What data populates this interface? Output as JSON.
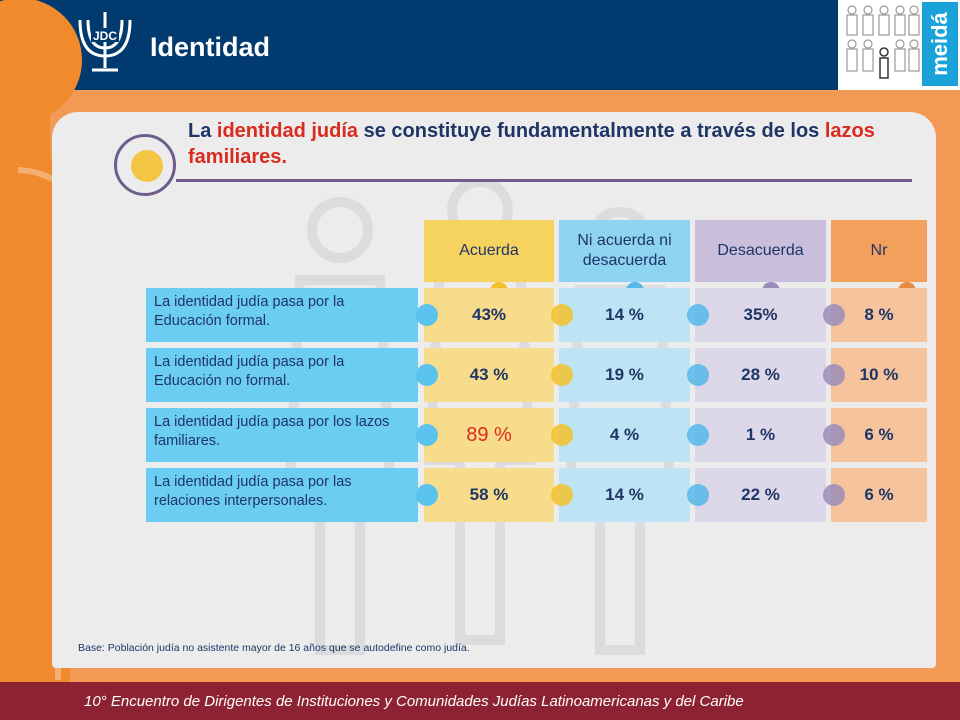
{
  "header": {
    "title": "Identidad",
    "logo_text": "JDC",
    "brand_text": "meidá"
  },
  "headline": {
    "part1": "La ",
    "highlight1": "identidad judía",
    "part2": " se constituye fundamentalmente a través de los ",
    "highlight2": "lazos familiares."
  },
  "columns": [
    {
      "label": "Acuerda",
      "color": "#f6d35f",
      "cell_color": "#f7dd8b",
      "knob_color": "#f2c12a"
    },
    {
      "label": "Ni acuerda ni desacuerda",
      "color": "#8fd3f3",
      "cell_color": "#bde4f5",
      "knob_color": "#56b8e8"
    },
    {
      "label": "Desacuerda",
      "color": "#c9bfdc",
      "cell_color": "#ddd7ea",
      "knob_color": "#9a8dbb"
    },
    {
      "label": "Nr",
      "color": "#f2a05c",
      "cell_color": "#f5c49d",
      "knob_color": "#ea8a3e"
    }
  ],
  "rows": [
    {
      "label": "La identidad judía pasa por la Educación formal.",
      "values": [
        "43%",
        "14 %",
        "35%",
        "8 %"
      ]
    },
    {
      "label": "La identidad judía pasa por la Educación no formal.",
      "values": [
        "43 %",
        "19 %",
        "28 %",
        "10 %"
      ]
    },
    {
      "label": "La identidad judía pasa por los lazos familiares.",
      "values": [
        "89 %",
        "4 %",
        "1 %",
        "6 %"
      ],
      "highlight_col": 0
    },
    {
      "label": "La identidad judía pasa por las relaciones interpersonales.",
      "values": [
        "58 %",
        "14 %",
        "22 %",
        "6 %"
      ]
    }
  ],
  "base_note": "Base: Población judía no asistente mayor de 16 años que se autodefine como judía.",
  "footer": "10° Encuentro de Dirigentes de Instituciones y Comunidades Judías Latinoamericanas y del Caribe"
}
